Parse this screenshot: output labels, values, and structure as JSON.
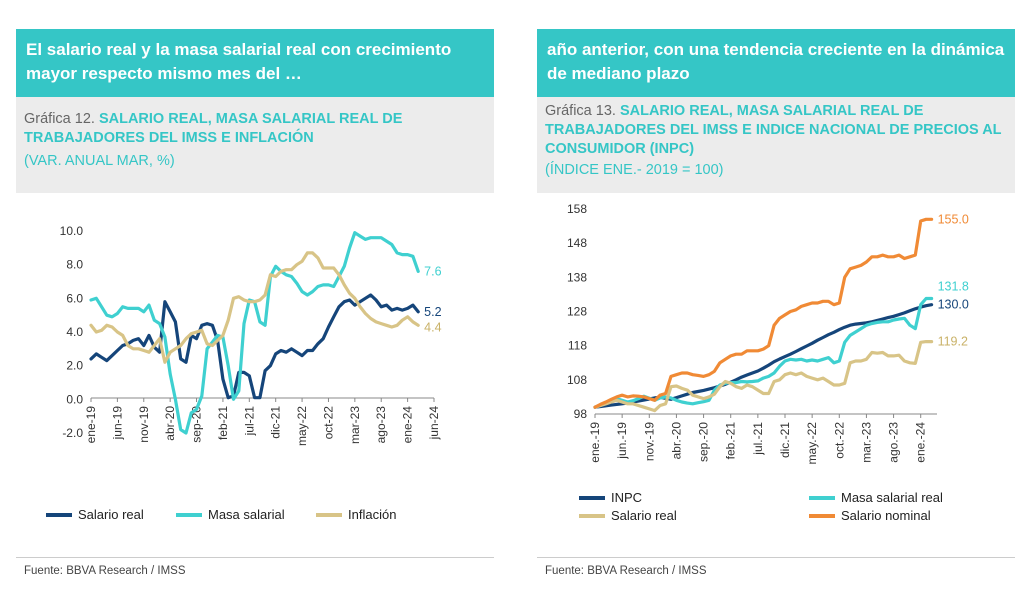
{
  "left": {
    "banner": "El salario real y la masa salarial real con crecimiento mayor respecto mismo mes del …",
    "chart_num": "Gráfica 12.",
    "chart_title": "SALARIO REAL, MASA SALARIAL REAL DE TRABAJADORES DEL IMSS E INFLACIÓN",
    "chart_subtitle": "(VAR. ANUAL MAR, %)",
    "source": "Fuente: BBVA Research / IMSS"
  },
  "right": {
    "banner": "año anterior, con una tendencia creciente en la dinámica de mediano plazo",
    "chart_num": "Gráfica 13.",
    "chart_title": "SALARIO REAL, MASA SALARIAL REAL DE TRABAJADORES DEL IMSS E INDICE NACIONAL DE PRECIOS AL CONSUMIDOR (INPC)",
    "chart_subtitle": "(ÍNDICE ENE.- 2019 = 100)",
    "source": "Fuente: BBVA Research / IMSS"
  },
  "colors": {
    "navy": "#15457a",
    "teal": "#3fd0d0",
    "sand": "#d8c487",
    "orange": "#f08a35",
    "banner": "#35c6c6"
  },
  "chart_data": [
    {
      "type": "line",
      "ylim": [
        -2,
        10
      ],
      "yticks": [
        "10.0",
        "8.0",
        "6.0",
        "4.0",
        "2.0",
        "0.0",
        "-2.0"
      ],
      "xticks": [
        "ene-19",
        "jun-19",
        "nov-19",
        "abr-20",
        "sep-20",
        "feb-21",
        "jul-21",
        "dic-21",
        "may-22",
        "oct-22",
        "mar-23",
        "ago-23",
        "ene-24",
        "jun-24"
      ],
      "x_start": "ene-19",
      "x_end": "mar-24",
      "grid": false,
      "legend_position": "bottom",
      "series": [
        {
          "name": "Salario real",
          "color": "#15457a",
          "end_label": "5.2",
          "values": [
            2.4,
            2.7,
            2.5,
            2.3,
            2.6,
            2.9,
            3.2,
            3.3,
            3.5,
            3.6,
            3.2,
            3.8,
            3.1,
            2.8,
            5.8,
            5.2,
            4.6,
            2.4,
            2.2,
            3.8,
            3.6,
            4.4,
            4.5,
            4.4,
            3.5,
            1.2,
            0.1,
            0.2,
            1.6,
            1.6,
            1.4,
            0.1,
            0.1,
            1.7,
            2.0,
            2.7,
            2.9,
            2.8,
            3.0,
            2.8,
            2.6,
            2.9,
            2.9,
            3.3,
            3.6,
            4.3,
            4.9,
            5.5,
            5.8,
            5.9,
            5.6,
            5.8,
            6.0,
            6.2,
            5.9,
            5.5,
            5.6,
            5.3,
            5.4,
            5.3,
            5.4,
            5.6,
            5.2
          ]
        },
        {
          "name": "Masa salarial",
          "color": "#3fd0d0",
          "end_label": "7.6",
          "values": [
            5.9,
            6.0,
            5.5,
            5.0,
            4.9,
            5.1,
            5.5,
            5.4,
            5.4,
            5.4,
            5.2,
            5.6,
            4.7,
            4.5,
            3.7,
            1.5,
            0.0,
            -1.8,
            -2.0,
            -0.8,
            -0.6,
            0.2,
            3.0,
            3.4,
            3.8,
            3.7,
            2.0,
            0.0,
            0.5,
            4.5,
            5.9,
            5.8,
            4.6,
            4.4,
            7.3,
            7.9,
            7.6,
            7.4,
            7.3,
            6.9,
            6.4,
            6.2,
            6.4,
            6.7,
            6.8,
            6.8,
            6.7,
            7.3,
            7.9,
            9.0,
            9.9,
            9.7,
            9.5,
            9.6,
            9.6,
            9.6,
            9.4,
            9.2,
            8.7,
            8.6,
            8.6,
            8.5,
            7.6
          ]
        },
        {
          "name": "Inflación",
          "color": "#d8c487",
          "end_label": "4.4",
          "values": [
            4.4,
            4.0,
            4.1,
            4.4,
            4.3,
            4.0,
            3.8,
            3.2,
            3.0,
            3.0,
            2.9,
            2.8,
            3.2,
            3.6,
            2.2,
            2.8,
            3.0,
            3.2,
            3.6,
            3.9,
            4.0,
            4.1,
            3.3,
            3.2,
            3.5,
            3.8,
            4.7,
            6.0,
            6.1,
            5.9,
            5.8,
            5.8,
            5.9,
            6.2,
            7.4,
            7.3,
            7.6,
            7.7,
            7.7,
            8.0,
            8.2,
            8.7,
            8.7,
            8.4,
            7.8,
            7.8,
            7.8,
            7.4,
            6.8,
            6.3,
            6.0,
            5.5,
            5.1,
            4.8,
            4.6,
            4.5,
            4.4,
            4.3,
            4.4,
            4.7,
            4.9,
            4.6,
            4.4
          ]
        }
      ]
    },
    {
      "type": "line",
      "ylim": [
        98,
        158
      ],
      "yticks": [
        "158",
        "148",
        "138",
        "128",
        "118",
        "108",
        "98"
      ],
      "xticks": [
        "ene.-19",
        "jun.-19",
        "nov.-19",
        "abr.-20",
        "sep.-20",
        "feb.-21",
        "jul.-21",
        "dic.-21",
        "may.-22",
        "oct.-22",
        "mar.-23",
        "ago.-23",
        "ene.-24"
      ],
      "x_start": "ene.-19",
      "x_end": "mar.-24",
      "grid": false,
      "legend_position": "bottom",
      "series": [
        {
          "name": "INPC",
          "color": "#15457a",
          "end_label": "130.0",
          "values": [
            100.0,
            100.2,
            100.4,
            100.6,
            100.8,
            101.0,
            101.2,
            101.5,
            101.8,
            102.1,
            102.4,
            102.7,
            102.9,
            102.6,
            102.3,
            102.8,
            103.3,
            103.8,
            104.3,
            104.6,
            104.9,
            105.3,
            105.7,
            106.2,
            106.7,
            107.3,
            108.0,
            108.8,
            109.4,
            110.0,
            110.6,
            111.4,
            112.3,
            113.3,
            114.1,
            114.8,
            115.5,
            116.3,
            117.1,
            117.9,
            118.7,
            119.6,
            120.4,
            121.2,
            121.9,
            122.7,
            123.4,
            124.0,
            124.3,
            124.5,
            124.7,
            125.0,
            125.4,
            125.8,
            126.2,
            126.6,
            127.1,
            127.6,
            128.2,
            128.8,
            129.3,
            129.7,
            130.0
          ]
        },
        {
          "name": "Masa salarial real",
          "color": "#3fd0d0",
          "end_label": "131.8",
          "values": [
            100.0,
            100.5,
            101.2,
            101.8,
            102.5,
            102.0,
            101.5,
            101.9,
            102.5,
            103.2,
            102.6,
            102.0,
            102.7,
            103.0,
            102.7,
            102.0,
            101.5,
            101.2,
            101.0,
            101.3,
            101.6,
            102.0,
            105.0,
            106.5,
            107.0,
            107.2,
            107.2,
            107.5,
            107.4,
            107.5,
            107.7,
            108.5,
            109.0,
            110.0,
            112.0,
            113.5,
            114.0,
            113.8,
            114.0,
            113.5,
            113.8,
            113.5,
            114.0,
            114.5,
            113.0,
            113.5,
            119.0,
            121.0,
            122.0,
            123.0,
            124.0,
            124.5,
            124.8,
            125.0,
            125.0,
            125.5,
            125.8,
            126.0,
            124.0,
            123.0,
            130.0,
            131.8,
            131.8
          ]
        },
        {
          "name": "Salario real",
          "color": "#d8c487",
          "end_label": "119.2",
          "values": [
            100.0,
            100.5,
            101.0,
            101.5,
            102.0,
            101.5,
            101.0,
            101.0,
            100.5,
            100.0,
            99.5,
            99.0,
            100.5,
            101.0,
            106.0,
            106.2,
            105.5,
            105.0,
            103.5,
            103.0,
            102.5,
            103.0,
            103.8,
            106.0,
            107.5,
            107.0,
            106.0,
            105.5,
            106.5,
            106.0,
            105.0,
            104.0,
            104.0,
            107.5,
            108.0,
            109.5,
            110.0,
            109.5,
            110.0,
            109.0,
            108.5,
            108.0,
            108.5,
            107.5,
            106.5,
            106.5,
            107.0,
            113.0,
            113.5,
            113.5,
            114.0,
            116.0,
            115.8,
            116.0,
            115.0,
            115.0,
            115.2,
            113.5,
            113.0,
            112.8,
            119.0,
            119.2,
            119.2
          ]
        },
        {
          "name": "Salario nominal",
          "color": "#f08a35",
          "end_label": "155.0",
          "values": [
            100.0,
            100.8,
            101.5,
            102.3,
            103.0,
            103.5,
            103.0,
            103.3,
            103.2,
            103.0,
            102.5,
            102.0,
            103.5,
            104.0,
            109.0,
            109.5,
            110.0,
            110.0,
            109.5,
            109.3,
            109.0,
            109.5,
            110.5,
            113.0,
            114.0,
            115.0,
            115.5,
            115.5,
            116.5,
            116.5,
            116.5,
            117.0,
            118.0,
            124.0,
            126.0,
            127.0,
            128.0,
            128.5,
            129.5,
            130.0,
            130.5,
            130.5,
            131.0,
            131.0,
            130.0,
            130.5,
            138.0,
            140.5,
            141.0,
            141.5,
            142.5,
            144.0,
            144.0,
            144.5,
            144.0,
            144.0,
            144.5,
            143.5,
            144.0,
            144.5,
            154.5,
            155.0,
            155.0
          ]
        }
      ]
    }
  ]
}
